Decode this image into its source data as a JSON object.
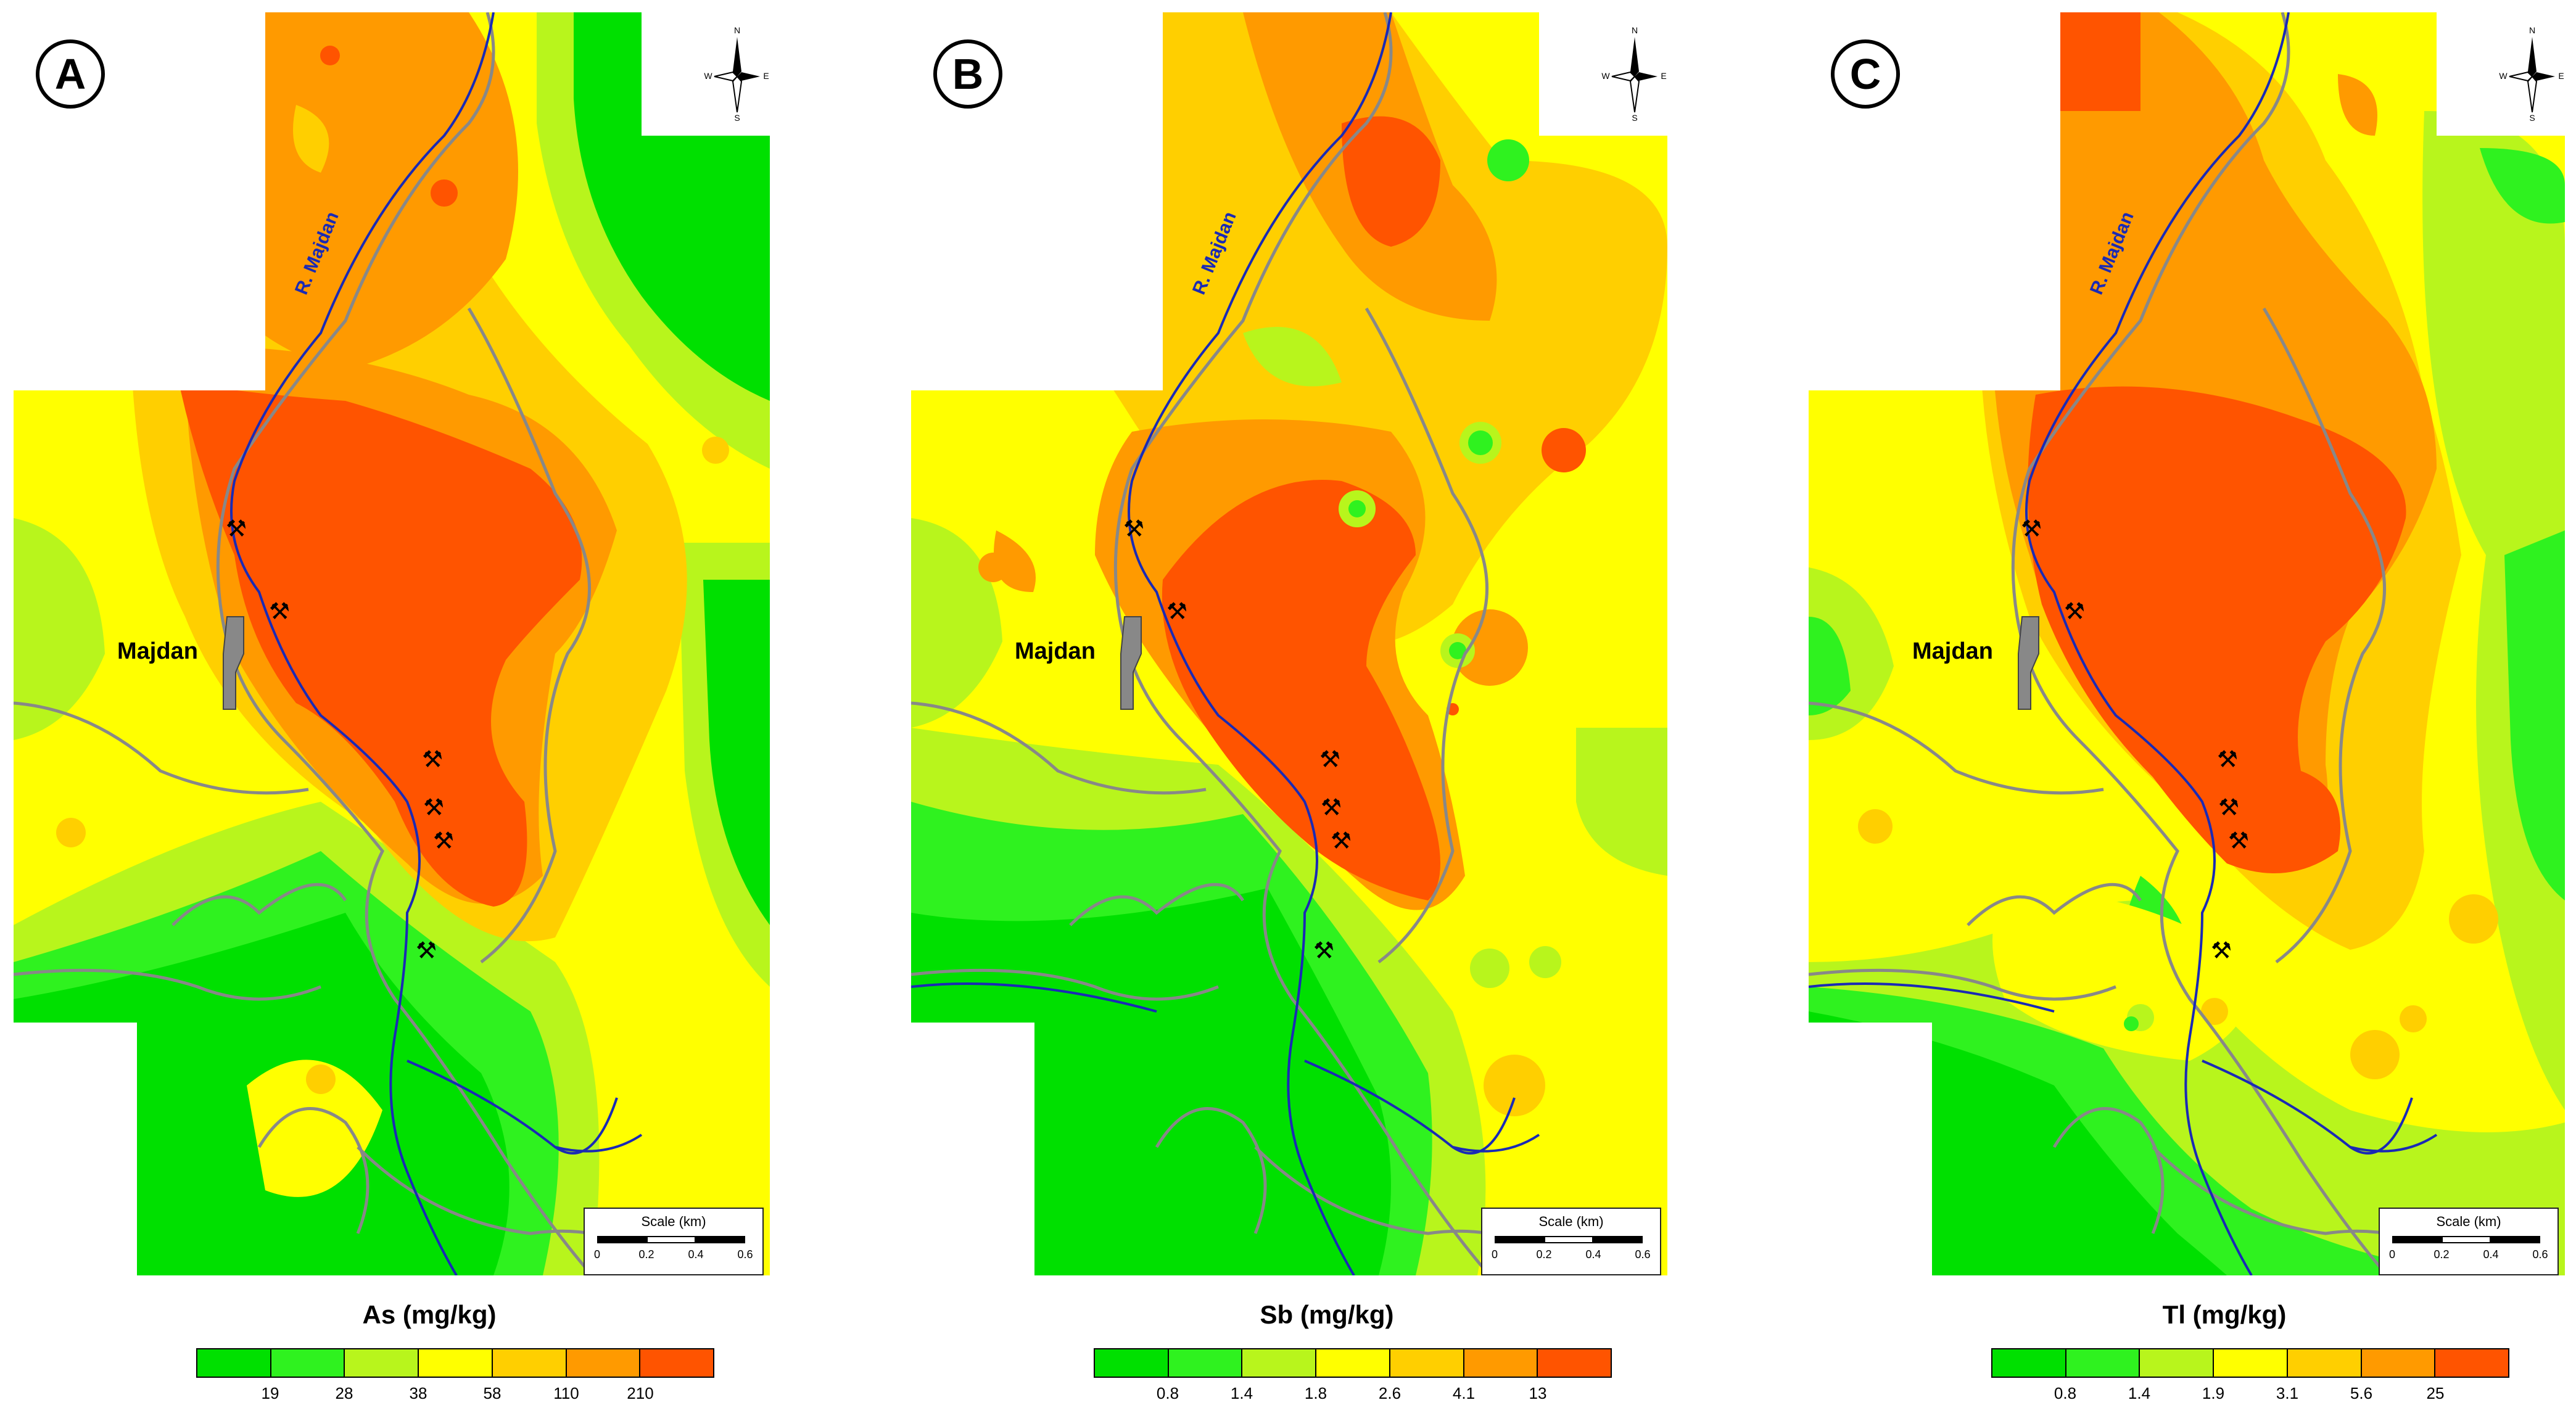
{
  "town_label": "Majdan",
  "river_label": "R. Majdan",
  "compass": {
    "n": "N",
    "s": "S",
    "e": "E",
    "w": "W"
  },
  "scale": {
    "title": "Scale (km)",
    "ticks": [
      "0",
      "0.2",
      "0.4",
      "0.6"
    ]
  },
  "colors": {
    "class_1": "#00e000",
    "class_2": "#2ff21f",
    "class_3": "#b8f51c",
    "class_4": "#ffff00",
    "class_5": "#ffcf00",
    "class_6": "#ff9a00",
    "class_7": "#ff5400",
    "river": "#1a2ab5",
    "road": "#888888"
  },
  "panels": [
    {
      "id": "A",
      "legend_title": "As (mg/kg)",
      "legend_ticks": [
        "19",
        "28",
        "38",
        "58",
        "110",
        "210"
      ]
    },
    {
      "id": "B",
      "legend_title": "Sb (mg/kg)",
      "legend_ticks": [
        "0.8",
        "1.4",
        "1.8",
        "2.6",
        "4.1",
        "13"
      ]
    },
    {
      "id": "C",
      "legend_title": "Tl (mg/kg)",
      "legend_ticks": [
        "0.8",
        "1.4",
        "1.9",
        "3.1",
        "5.6",
        "25"
      ]
    }
  ]
}
